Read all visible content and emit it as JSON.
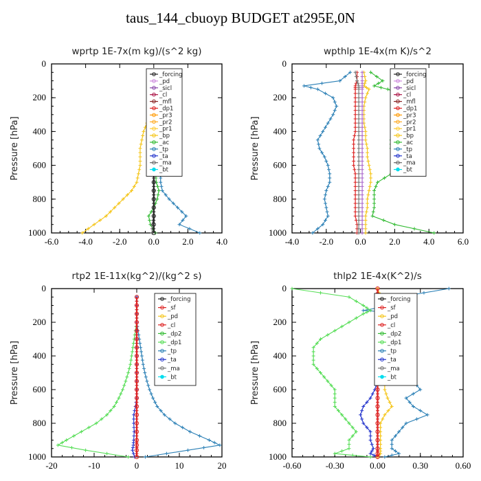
{
  "title": "taus_144_cbuoyp  BUDGET at295E,0N",
  "chart_data": [
    {
      "type": "line",
      "title": "wprtp  1E-7x(m kg)/(s^2 kg)",
      "ylabel": "Pressure [hPa]",
      "xlim": [
        -6,
        4
      ],
      "ylim": [
        1000,
        0
      ],
      "xticks": [
        "-6.0",
        "-4.0",
        "-2.0",
        "0.0",
        "2.0",
        "4.0"
      ],
      "xtick_values": [
        -6,
        -4,
        -2,
        0,
        2,
        4
      ],
      "yticks": [
        "0",
        "200",
        "400",
        "600",
        "800",
        "1000"
      ],
      "ytick_values": [
        0,
        200,
        400,
        600,
        800,
        1000
      ],
      "pressure": [
        50,
        100,
        150,
        200,
        250,
        300,
        350,
        400,
        450,
        500,
        550,
        600,
        650,
        700,
        750,
        800,
        850,
        900,
        950,
        1000
      ],
      "legend": [
        "_forcing",
        "_pd",
        "_sicl",
        "_cl",
        "_mfl",
        "_dp1",
        "_pr3",
        "_pr2",
        "_pr1",
        "_bp",
        "_ac",
        "_tp",
        "_ta",
        "_ma",
        "_bt"
      ],
      "series": [
        {
          "name": "_tp",
          "color": "#2a7fb5",
          "values": [
            0,
            0,
            0,
            0.1,
            0.1,
            0.15,
            0.2,
            0.2,
            0.25,
            0.3,
            0.3,
            0.35,
            0.4,
            0.4,
            0.5,
            0.9,
            1.4,
            1.9,
            1.5,
            2.7
          ]
        },
        {
          "name": "_bp",
          "color": "#f5c518",
          "values": [
            0,
            0,
            0,
            -0.1,
            -0.2,
            -0.3,
            -0.4,
            -0.6,
            -0.7,
            -0.8,
            -0.8,
            -0.8,
            -0.9,
            -1.0,
            -1.3,
            -1.8,
            -2.3,
            -2.8,
            -3.5,
            -4.2
          ]
        },
        {
          "name": "_ac",
          "color": "#33bb33",
          "values": [
            0,
            0,
            0,
            0,
            0,
            0,
            0,
            0,
            0.05,
            0.05,
            0.05,
            0.1,
            0.1,
            0.15,
            0.3,
            0.2,
            0,
            -0.3,
            -0.2,
            0.1
          ]
        },
        {
          "name": "_ma",
          "color": "#777777",
          "values": [
            0,
            0,
            0,
            0,
            0,
            0,
            0,
            0,
            0,
            0,
            0,
            0,
            0,
            0,
            0,
            0,
            0,
            0,
            -0.1,
            -0.1
          ]
        },
        {
          "name": "_forcing",
          "color": "#222222",
          "values": [
            0,
            0,
            0,
            0,
            0,
            0,
            0,
            0,
            0,
            0,
            0,
            0,
            0,
            0,
            0,
            0,
            0,
            0,
            0,
            0
          ]
        }
      ]
    },
    {
      "type": "line",
      "title": "wpthlp  1E-4x(m K)/s^2",
      "ylabel": "Pressure [hPa]",
      "xlim": [
        -4,
        6
      ],
      "ylim": [
        1000,
        0
      ],
      "xticks": [
        "-4.0",
        "-2.0",
        "0.0",
        "2.0",
        "4.0",
        "6.0"
      ],
      "xtick_values": [
        -4,
        -2,
        0,
        2,
        4,
        6
      ],
      "yticks": [
        "0",
        "200",
        "400",
        "600",
        "800",
        "1000"
      ],
      "ytick_values": [
        0,
        200,
        400,
        600,
        800,
        1000
      ],
      "pressure": [
        50,
        100,
        130,
        150,
        200,
        250,
        300,
        350,
        400,
        450,
        500,
        550,
        600,
        650,
        700,
        750,
        800,
        850,
        900,
        950,
        1000
      ],
      "legend": [
        "_forcing",
        "_pd",
        "_sicl",
        "_cl",
        "_mfl",
        "_dp1",
        "_pr3",
        "_pr2",
        "_pr1",
        "_bp",
        "_ac",
        "_tp",
        "_ta",
        "_ma",
        "_bt"
      ],
      "series": [
        {
          "name": "_tp",
          "color": "#2a7fb5",
          "values": [
            -0.6,
            -1.2,
            -3.3,
            -2.5,
            -1.6,
            -1.4,
            -1.6,
            -1.9,
            -2.2,
            -2.5,
            -2.4,
            -2.1,
            -1.9,
            -1.8,
            -1.8,
            -2.0,
            -2.1,
            -2.0,
            -1.9,
            -2.2,
            -2.8
          ]
        },
        {
          "name": "_ac",
          "color": "#33bb33",
          "values": [
            0.6,
            1.3,
            0.8,
            1.6,
            2.8,
            2.6,
            2.4,
            2.3,
            2.1,
            1.8,
            1.8,
            2.0,
            2.2,
            1.8,
            1.0,
            0.8,
            0.8,
            0.8,
            0.7,
            2.0,
            4.3
          ]
        },
        {
          "name": "_bp",
          "color": "#f5c518",
          "values": [
            0.2,
            0.3,
            0.2,
            0.5,
            0.3,
            0.2,
            0.2,
            0.2,
            0.3,
            0.3,
            0.4,
            0.4,
            0.5,
            0.6,
            0.6,
            0.5,
            0.4,
            0.4,
            0.3,
            0.3,
            0.3
          ]
        },
        {
          "name": "_dp1",
          "color": "#dd2222",
          "values": [
            -0.2,
            -0.2,
            -0.3,
            -0.3,
            -0.3,
            -0.3,
            -0.3,
            -0.3,
            -0.3,
            -0.4,
            -0.4,
            -0.4,
            -0.4,
            -0.3,
            -0.3,
            -0.3,
            -0.3,
            -0.3,
            -0.3,
            -0.2,
            -0.2
          ]
        },
        {
          "name": "_ma",
          "color": "#777777",
          "values": [
            -0.3,
            -0.2,
            -0.1,
            -0.1,
            -0.1,
            -0.1,
            -0.1,
            -0.1,
            -0.1,
            -0.1,
            -0.1,
            -0.1,
            -0.1,
            -0.1,
            -0.1,
            -0.1,
            -0.1,
            -0.1,
            -0.1,
            -0.1,
            -0.1
          ]
        },
        {
          "name": "_pd",
          "color": "#aa66cc",
          "values": [
            0.1,
            0.1,
            0.1,
            0.1,
            0.1,
            0.1,
            0.1,
            0.1,
            0.1,
            0.1,
            0.1,
            0.1,
            0.1,
            0.1,
            0.1,
            0.1,
            0.1,
            0.1,
            0.1,
            0.1,
            0.1
          ]
        }
      ]
    },
    {
      "type": "line",
      "title": "rtp2  1E-11x(kg^2)/(kg^2 s)",
      "ylabel": "Pressure [hPa]",
      "xlim": [
        -20,
        20
      ],
      "ylim": [
        1000,
        0
      ],
      "xticks": [
        "-20",
        "-10",
        "0",
        "10",
        "20"
      ],
      "xtick_values": [
        -20,
        -10,
        0,
        10,
        20
      ],
      "yticks": [
        "0",
        "200",
        "400",
        "600",
        "800",
        "1000"
      ],
      "ytick_values": [
        0,
        200,
        400,
        600,
        800,
        1000
      ],
      "pressure": [
        50,
        100,
        150,
        200,
        250,
        300,
        350,
        400,
        450,
        500,
        550,
        600,
        650,
        700,
        750,
        800,
        850,
        900,
        930,
        960,
        1000
      ],
      "legend": [
        "_forcing",
        "_sf",
        "_pd",
        "_cl",
        "_dp2",
        "_dp1",
        "_tp",
        "_ta",
        "_ma",
        "_bt"
      ],
      "series": [
        {
          "name": "_tp",
          "color": "#2a7fb5",
          "values": [
            0,
            0,
            0,
            0,
            0.3,
            0.6,
            0.9,
            1.2,
            1.5,
            1.9,
            2.4,
            3.0,
            3.8,
            4.8,
            6.5,
            9.0,
            12.5,
            17.0,
            19.5,
            12.0,
            2.0
          ]
        },
        {
          "name": "_dp1",
          "color": "#55dd55",
          "values": [
            0,
            0,
            0,
            0,
            -0.3,
            -0.6,
            -0.9,
            -1.2,
            -1.5,
            -2.0,
            -2.6,
            -3.3,
            -4.2,
            -5.3,
            -7.0,
            -9.5,
            -13.0,
            -16.5,
            -18.5,
            -12.0,
            -2.0
          ]
        },
        {
          "name": "_ta",
          "color": "#2233cc",
          "values": [
            0,
            0,
            0,
            0,
            0,
            0,
            0,
            0,
            0,
            0,
            0,
            0,
            0,
            -0.3,
            -0.7,
            -0.7,
            -0.6,
            -0.7,
            -0.8,
            -1.0,
            -0.5
          ]
        },
        {
          "name": "_forcing",
          "color": "#dd2222",
          "values": [
            0,
            0,
            0,
            0,
            0,
            0,
            0,
            0,
            0,
            0,
            0,
            0,
            0,
            0,
            0,
            0,
            0,
            0,
            0,
            0,
            0
          ]
        }
      ]
    },
    {
      "type": "line",
      "title": "thlp2  1E-4x(K^2)/s",
      "ylabel": "Pressure [hPa]",
      "xlim": [
        -0.6,
        0.6
      ],
      "ylim": [
        1000,
        0
      ],
      "xticks": [
        "-0.60",
        "-0.30",
        "0.00",
        "0.30",
        "0.60"
      ],
      "xtick_values": [
        -0.6,
        -0.3,
        0,
        0.3,
        0.6
      ],
      "yticks": [
        "0",
        "200",
        "400",
        "600",
        "800",
        "1000"
      ],
      "ytick_values": [
        0,
        200,
        400,
        600,
        800,
        1000
      ],
      "pressure": [
        0,
        50,
        100,
        130,
        150,
        200,
        250,
        300,
        350,
        400,
        450,
        500,
        550,
        600,
        650,
        700,
        750,
        800,
        850,
        900,
        950,
        980,
        1000
      ],
      "legend": [
        "_forcing",
        "_sf",
        "_pd",
        "_cl",
        "_dp2",
        "_dp1",
        "_tp",
        "_ta",
        "_ma",
        "_bt"
      ],
      "series": [
        {
          "name": "_tp",
          "color": "#2a7fb5",
          "values": [
            0.5,
            0.15,
            0.1,
            -0.1,
            0.25,
            0.05,
            0.1,
            0.15,
            0.15,
            0.2,
            0.2,
            0.2,
            0.25,
            0.3,
            0.2,
            0.25,
            0.35,
            0.2,
            0.15,
            0.1,
            0.1,
            0.15,
            0.05
          ]
        },
        {
          "name": "_dp1",
          "color": "#55dd55",
          "values": [
            -0.6,
            -0.2,
            -0.1,
            -0.05,
            -0.1,
            -0.2,
            -0.3,
            -0.4,
            -0.45,
            -0.45,
            -0.45,
            -0.4,
            -0.35,
            -0.3,
            -0.3,
            -0.3,
            -0.25,
            -0.2,
            -0.15,
            -0.2,
            -0.2,
            -0.3,
            -0.05
          ]
        },
        {
          "name": "_ta",
          "color": "#2233cc",
          "values": [
            0,
            0,
            0,
            0,
            0,
            0,
            0,
            0,
            0,
            0,
            0,
            0,
            0,
            -0.02,
            -0.05,
            -0.1,
            -0.12,
            -0.1,
            -0.05,
            -0.05,
            -0.03,
            -0.05,
            0
          ]
        },
        {
          "name": "_pd",
          "color": "#f5c518",
          "values": [
            0,
            0.02,
            0.08,
            0.1,
            0.12,
            0.05,
            0.05,
            0.05,
            0.05,
            0.05,
            0.05,
            0.05,
            0.05,
            0.05,
            0.07,
            0.1,
            0.05,
            0.02,
            0.02,
            0.02,
            0.02,
            0.02,
            0
          ]
        },
        {
          "name": "_forcing",
          "color": "#dd2222",
          "values": [
            0,
            0,
            0,
            0,
            0,
            0,
            0,
            0,
            0,
            0,
            0,
            0,
            0,
            0,
            0,
            0,
            0,
            0,
            0,
            0,
            0,
            0,
            0
          ]
        }
      ]
    }
  ]
}
